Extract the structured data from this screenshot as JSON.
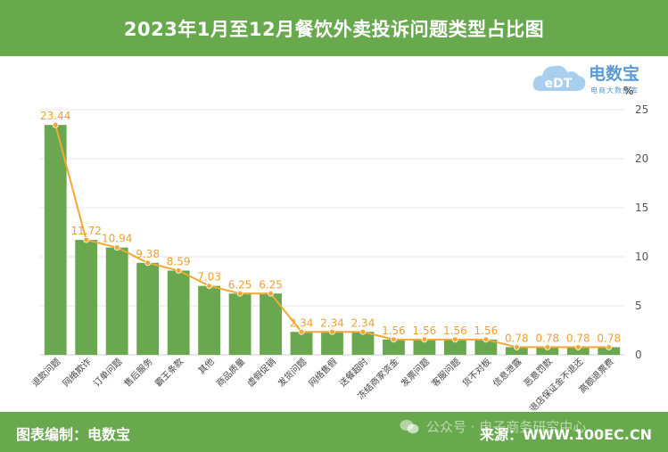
{
  "header": {
    "title": "2023年1月至12月餐饮外卖投诉问题类型占比图"
  },
  "logo": {
    "name": "电数宝",
    "tagline": "电商大数据库",
    "mark": "eDT"
  },
  "footer": {
    "credit": "图表编制：电数宝",
    "source": "来源：WWW.100EC.CN",
    "watermark": "公众号 · 电子商务研究中心"
  },
  "colors": {
    "bar": "#6aa84f",
    "line": "#f4a734",
    "label": "#f0a030",
    "header": "#68a94e",
    "axis": "#555555"
  },
  "chart_data": {
    "type": "bar",
    "title": "2023年1月至12月餐饮外卖投诉问题类型占比图",
    "ylabel": "%",
    "ylim": [
      0,
      25
    ],
    "yticks": [
      0,
      5,
      10,
      15,
      20,
      25
    ],
    "grid": true,
    "categories": [
      "退款问题",
      "网络欺诈",
      "订单问题",
      "售后服务",
      "霸王条款",
      "其他",
      "商品质量",
      "虚假促销",
      "发货问题",
      "网络售假",
      "送餐超时",
      "冻结商家资金",
      "发票问题",
      "客服问题",
      "货不对板",
      "信息泄露",
      "恶意罚款",
      "退店保证金不退还",
      "高额退票费"
    ],
    "values": [
      23.44,
      11.72,
      10.94,
      9.38,
      8.59,
      7.03,
      6.25,
      6.25,
      2.34,
      2.34,
      2.34,
      1.56,
      1.56,
      1.56,
      1.56,
      0.78,
      0.78,
      0.78,
      0.78
    ],
    "value_labels": [
      "23.44",
      "11.72",
      "10.94",
      "9.38",
      "8.59",
      "7.03",
      "6.25",
      "6.25",
      "2.34",
      "2.34",
      "2.34",
      "1.56",
      "1.56",
      "1.56",
      "1.56",
      "0.78",
      "0.78",
      "0.78",
      "0.78"
    ],
    "overlay_line": true
  }
}
